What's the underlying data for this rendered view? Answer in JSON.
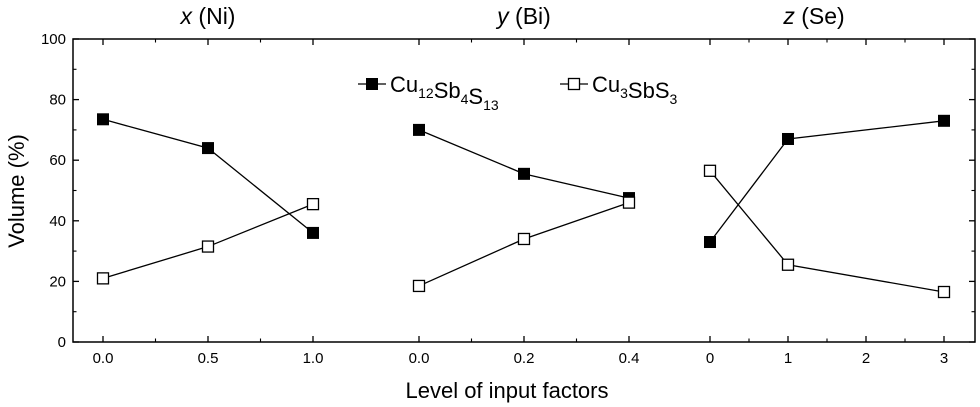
{
  "chart_data": {
    "type": "line",
    "xlabel": "Level of input factors",
    "ylabel": "Volume (%)",
    "ylim": [
      0,
      100
    ],
    "yticks": [
      "0",
      "20",
      "40",
      "60",
      "80",
      "100"
    ],
    "grid": false,
    "legend": {
      "placement": "top-center",
      "entries": [
        {
          "base": [
            "Cu",
            "Sb",
            "S"
          ],
          "subs": [
            "12",
            "4",
            "13"
          ],
          "marker": "filled-square"
        },
        {
          "base": [
            "Cu",
            "SbS",
            ""
          ],
          "subs": [
            "3",
            "3",
            ""
          ],
          "marker": "open-square"
        }
      ]
    },
    "panels": [
      {
        "title_var": "x",
        "title_rest": " (Ni)",
        "categories": [
          "0.0",
          "0.5",
          "1.0"
        ],
        "series": [
          {
            "marker": "filled-square",
            "values": [
              73.5,
              64,
              36
            ]
          },
          {
            "marker": "open-square",
            "values": [
              21,
              31.5,
              45.5
            ]
          }
        ]
      },
      {
        "title_var": "y",
        "title_rest": " (Bi)",
        "categories": [
          "0.0",
          "0.2",
          "0.4"
        ],
        "series": [
          {
            "marker": "filled-square",
            "values": [
              70,
              55.5,
              47.5
            ]
          },
          {
            "marker": "open-square",
            "values": [
              18.5,
              34,
              46
            ]
          }
        ]
      },
      {
        "title_var": "z",
        "title_rest": " (Se)",
        "categories": [
          "0",
          "1",
          "2",
          "3"
        ],
        "series": [
          {
            "marker": "filled-square",
            "values": [
              33,
              67,
              null,
              73
            ]
          },
          {
            "marker": "open-square",
            "values": [
              56.5,
              25.5,
              null,
              16.5
            ]
          }
        ]
      }
    ]
  }
}
